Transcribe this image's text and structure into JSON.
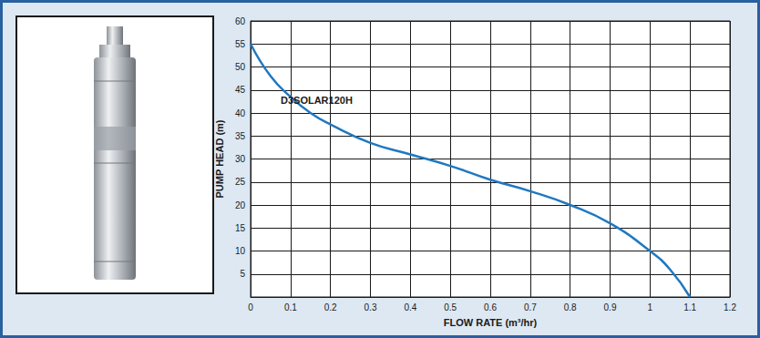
{
  "chart_data": {
    "type": "line",
    "x_label": "FLOW RATE (m³/hr)",
    "y_label": "PUMP HEAD (m)",
    "series": [
      {
        "name": "D3SOLAR120H",
        "color": "#1f78c1",
        "x": [
          0,
          0.05,
          0.1,
          0.15,
          0.2,
          0.3,
          0.4,
          0.5,
          0.6,
          0.7,
          0.8,
          0.9,
          1.0,
          1.05,
          1.1
        ],
        "values": [
          55,
          48,
          43.5,
          40,
          37.5,
          33.5,
          31,
          28.5,
          25.5,
          23,
          20,
          16,
          10,
          6,
          0
        ]
      }
    ],
    "xlim": [
      0,
      1.2
    ],
    "xticks": [
      0,
      0.1,
      0.2,
      0.3,
      0.4,
      0.5,
      0.6,
      0.7,
      0.8,
      0.9,
      1.0,
      1.1,
      1.2
    ],
    "ylim": [
      0,
      60
    ],
    "yticks": [
      5,
      10,
      15,
      20,
      25,
      30,
      35,
      40,
      45,
      50,
      55,
      60
    ],
    "grid": true
  }
}
